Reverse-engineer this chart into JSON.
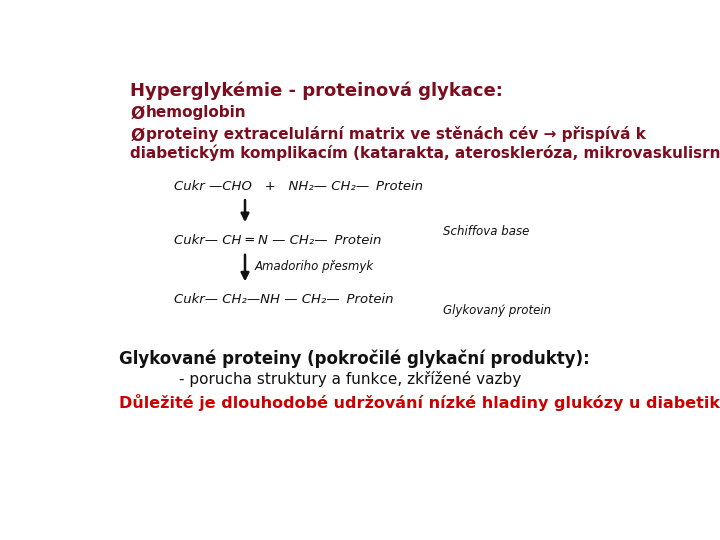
{
  "title": "Hyperglykémie - proteinová glykace:",
  "bullet_char": "Ø",
  "bullet1_text": "hemoglobin",
  "bullet2_line1": "proteiny extracelulární matrix ve stěnách cév → přispívá k",
  "bullet2_line2": "diabetickým komplikacím (katarakta, ateroskleróza, mikrovaskulisrní)",
  "bullet2_line2_correct": "diabetickým komplikacím (katarakta, ateroskleróza, mikrovaskulisrní)",
  "footer_bold": "Glykované proteiny (pokročilé glykační produkty):",
  "footer_line2": "- porucha struktury a funkce, zkřížené vazby",
  "footer_red": "Důležité je dlouhodobé udržování nízké hladiny glukózy u diabetiků !",
  "title_color": "#7B0D1E",
  "dark_red": "#7B0D1E",
  "footer_red_color": "#CC0000",
  "black": "#111111",
  "bg_color": "#FFFFFF",
  "schiff_label": "Schiffova base",
  "amadori_label": "Amadoriho přesmyk",
  "glyk_label": "Glykovaný protein",
  "chem_row1": "Cukr —CHO   +   NH₂— CH₂— Protein",
  "chem_row2": "Cukr— CH ═ N — CH₂— Protein",
  "chem_row3": "Cukr— CH₂—NH — CH₂— Protein"
}
